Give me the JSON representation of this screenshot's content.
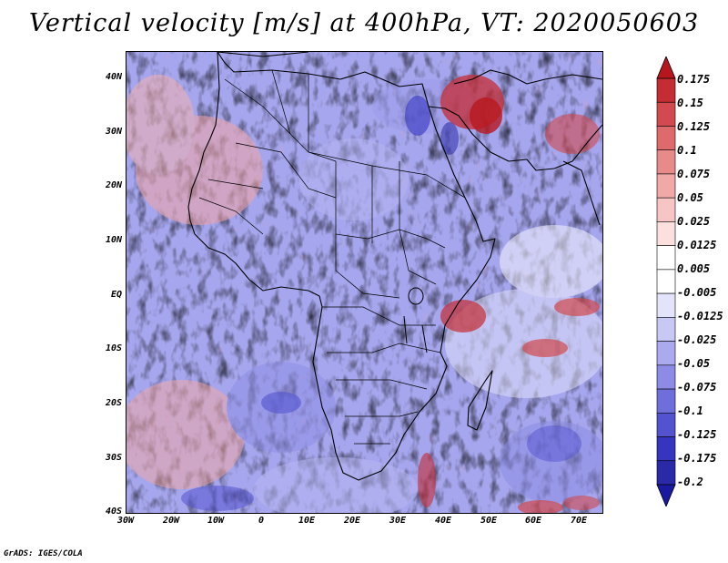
{
  "title": "Vertical velocity [m/s] at 400hPa, VT: 2020050603",
  "map": {
    "region": "Africa",
    "lat_labels": [
      "40N",
      "30N",
      "20N",
      "10N",
      "EQ",
      "10S",
      "20S",
      "30S",
      "40S"
    ],
    "lon_labels": [
      "30W",
      "20W",
      "10W",
      "0",
      "10E",
      "20E",
      "30E",
      "40E",
      "50E",
      "60E",
      "70E"
    ]
  },
  "colorbar": {
    "levels": [
      "0.175",
      "0.15",
      "0.125",
      "0.1",
      "0.075",
      "0.05",
      "0.025",
      "0.0125",
      "0.005",
      "-0.005",
      "-0.0125",
      "-0.025",
      "-0.05",
      "-0.075",
      "-0.1",
      "-0.125",
      "-0.175",
      "-0.2"
    ],
    "colors": [
      "#b8161e",
      "#c52c33",
      "#d24a4f",
      "#df6a6c",
      "#e98a8a",
      "#f1a9a8",
      "#f7c6c4",
      "#fbe0de",
      "#ffffff",
      "#ffffff",
      "#e3e3fb",
      "#c8c8f5",
      "#aaaaef",
      "#8c8ce6",
      "#6f6fdc",
      "#5353d0",
      "#3535bf",
      "#2a2aa8",
      "#1a1aa0"
    ]
  },
  "credit": "GrADS: IGES/COLA"
}
